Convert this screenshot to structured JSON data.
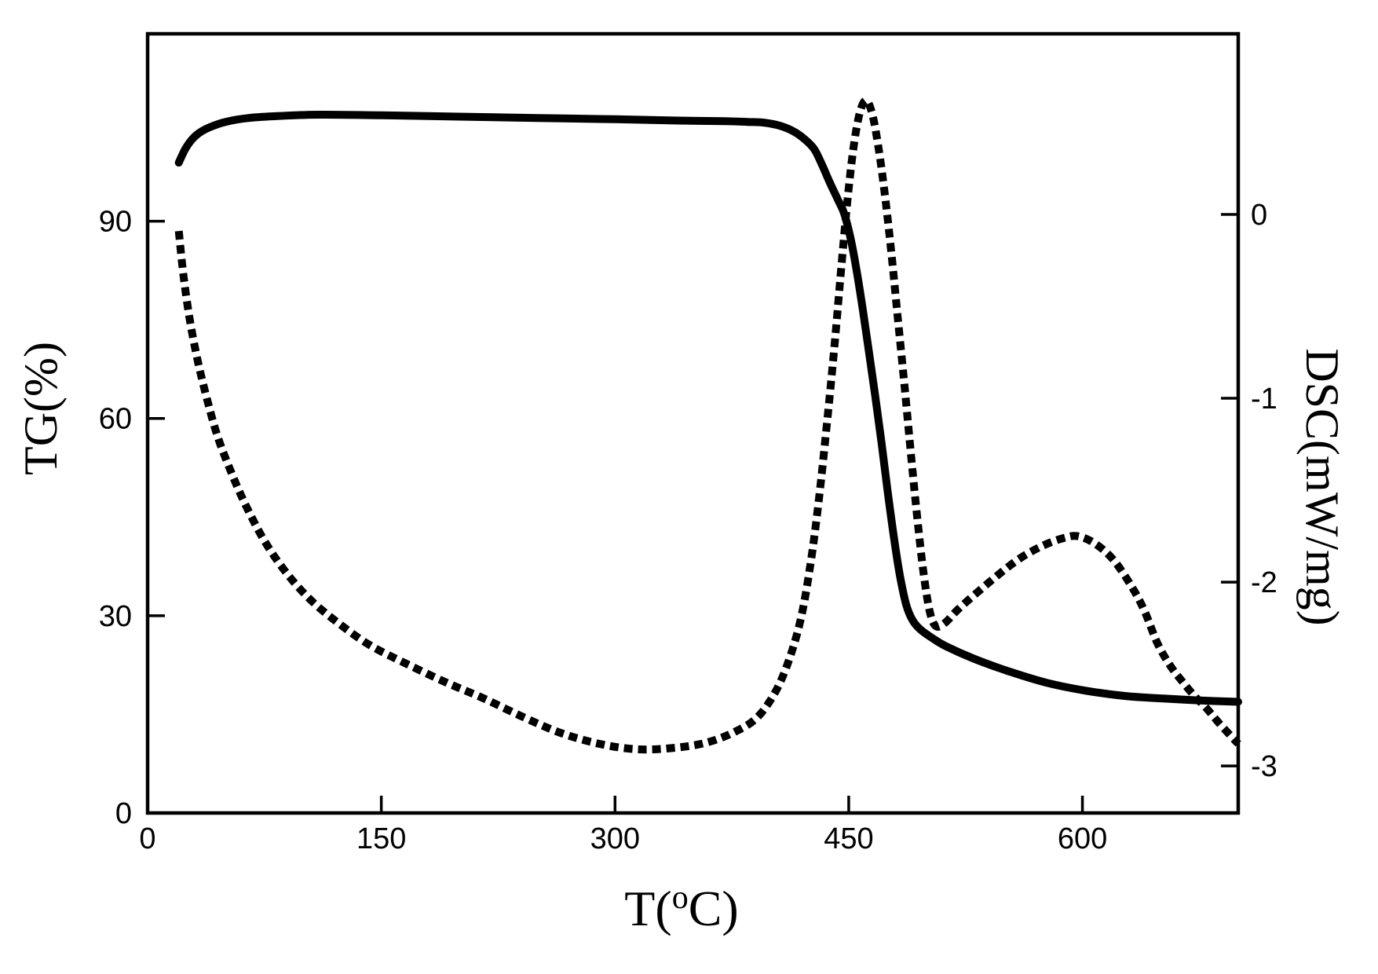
{
  "figure": {
    "background": "#ffffff",
    "line_color": "#000000"
  },
  "axes": {
    "x": {
      "label_pre": "T(",
      "label_deg": "o",
      "label_post": "C)",
      "ticks": [
        0,
        150,
        300,
        450,
        600
      ],
      "range": [
        0,
        700
      ]
    },
    "y_left": {
      "label": "TG(%)",
      "ticks": [
        0,
        30,
        60,
        90
      ],
      "range": [
        0,
        118.5
      ]
    },
    "y_right": {
      "label": "DSC(mW/mg)",
      "ticks": [
        0,
        -1,
        -2,
        -3
      ],
      "range": [
        -3.256,
        0.983
      ]
    }
  },
  "chart_data": {
    "type": "line",
    "title": "",
    "xlabel": "T(°C)",
    "ylabel_left": "TG(%)",
    "ylabel_right": "DSC(mW/mg)",
    "xlim": [
      0,
      700
    ],
    "ylim_left": [
      0,
      118.5
    ],
    "ylim_right": [
      -3.256,
      0.983
    ],
    "grid": false,
    "legend": "none",
    "series": [
      {
        "name": "TG",
        "axis": "left",
        "style": "solid",
        "color": "#000000",
        "points": [
          [
            20,
            98.9
          ],
          [
            24,
            100.9
          ],
          [
            28,
            102.3
          ],
          [
            33,
            103.4
          ],
          [
            40,
            104.3
          ],
          [
            50,
            105.1
          ],
          [
            65,
            105.7
          ],
          [
            85,
            106.0
          ],
          [
            110,
            106.2
          ],
          [
            150,
            106.1
          ],
          [
            200,
            105.9
          ],
          [
            250,
            105.7
          ],
          [
            300,
            105.5
          ],
          [
            340,
            105.3
          ],
          [
            370,
            105.2
          ],
          [
            385,
            105.1
          ],
          [
            395,
            105.0
          ],
          [
            406,
            104.5
          ],
          [
            415,
            103.6
          ],
          [
            422,
            102.4
          ],
          [
            428,
            100.9
          ],
          [
            433,
            98.5
          ],
          [
            438,
            95.8
          ],
          [
            443,
            93.3
          ],
          [
            447,
            91.2
          ],
          [
            451,
            87.6
          ],
          [
            455,
            82.6
          ],
          [
            459,
            76.6
          ],
          [
            463,
            70.1
          ],
          [
            467,
            63.4
          ],
          [
            471,
            56.4
          ],
          [
            475,
            48.9
          ],
          [
            479,
            41.9
          ],
          [
            483,
            35.9
          ],
          [
            487,
            31.6
          ],
          [
            491,
            29.3
          ],
          [
            496,
            27.9
          ],
          [
            503,
            26.7
          ],
          [
            512,
            25.4
          ],
          [
            530,
            23.5
          ],
          [
            552,
            21.6
          ],
          [
            577,
            19.8
          ],
          [
            602,
            18.6
          ],
          [
            627,
            17.8
          ],
          [
            652,
            17.4
          ],
          [
            677,
            17.1
          ],
          [
            700,
            16.9
          ]
        ]
      },
      {
        "name": "DSC",
        "axis": "right",
        "style": "dotted",
        "color": "#000000",
        "points": [
          [
            20,
            -0.09
          ],
          [
            23,
            -0.33
          ],
          [
            27,
            -0.57
          ],
          [
            32,
            -0.79
          ],
          [
            38,
            -1.0
          ],
          [
            45,
            -1.21
          ],
          [
            54,
            -1.41
          ],
          [
            64,
            -1.6
          ],
          [
            76,
            -1.79
          ],
          [
            90,
            -1.96
          ],
          [
            105,
            -2.1
          ],
          [
            122,
            -2.22
          ],
          [
            142,
            -2.34
          ],
          [
            165,
            -2.44
          ],
          [
            190,
            -2.54
          ],
          [
            215,
            -2.63
          ],
          [
            240,
            -2.73
          ],
          [
            265,
            -2.82
          ],
          [
            290,
            -2.88
          ],
          [
            315,
            -2.91
          ],
          [
            340,
            -2.9
          ],
          [
            360,
            -2.87
          ],
          [
            378,
            -2.81
          ],
          [
            392,
            -2.73
          ],
          [
            404,
            -2.58
          ],
          [
            413,
            -2.39
          ],
          [
            420,
            -2.17
          ],
          [
            426,
            -1.87
          ],
          [
            431,
            -1.54
          ],
          [
            436,
            -1.14
          ],
          [
            441,
            -0.7
          ],
          [
            445,
            -0.31
          ],
          [
            449,
            0.06
          ],
          [
            453,
            0.36
          ],
          [
            457,
            0.55
          ],
          [
            461,
            0.62
          ],
          [
            465,
            0.55
          ],
          [
            469,
            0.37
          ],
          [
            473,
            0.12
          ],
          [
            477,
            -0.18
          ],
          [
            481,
            -0.52
          ],
          [
            486,
            -0.95
          ],
          [
            490,
            -1.31
          ],
          [
            494,
            -1.65
          ],
          [
            498,
            -1.95
          ],
          [
            502,
            -2.16
          ],
          [
            506,
            -2.24
          ],
          [
            512,
            -2.22
          ],
          [
            520,
            -2.15
          ],
          [
            532,
            -2.06
          ],
          [
            546,
            -1.96
          ],
          [
            560,
            -1.87
          ],
          [
            575,
            -1.8
          ],
          [
            588,
            -1.76
          ],
          [
            597,
            -1.75
          ],
          [
            608,
            -1.79
          ],
          [
            620,
            -1.88
          ],
          [
            632,
            -2.03
          ],
          [
            640,
            -2.16
          ],
          [
            648,
            -2.33
          ],
          [
            656,
            -2.45
          ],
          [
            664,
            -2.54
          ],
          [
            672,
            -2.62
          ],
          [
            680,
            -2.69
          ],
          [
            688,
            -2.77
          ],
          [
            700,
            -2.88
          ]
        ]
      }
    ]
  }
}
